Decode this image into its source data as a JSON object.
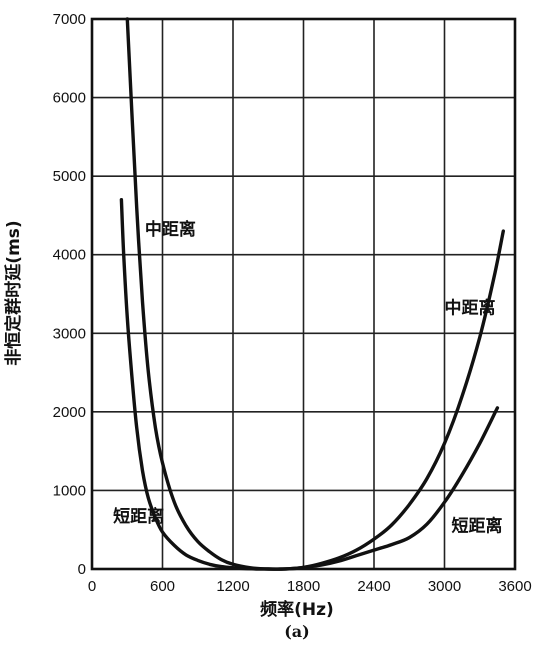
{
  "chart_data": {
    "type": "line",
    "title": "",
    "xlabel": "频率(Hz)",
    "ylabel": "非恒定群时延(ms)",
    "caption": "(a)",
    "xlim": [
      0,
      3600
    ],
    "ylim": [
      0,
      7000
    ],
    "x_ticks": [
      "0",
      "600",
      "1200",
      "1800",
      "2400",
      "3000",
      "3600"
    ],
    "y_ticks": [
      "0",
      "1000",
      "2000",
      "3000",
      "4000",
      "5000",
      "6000",
      "7000"
    ],
    "grid": true,
    "series": [
      {
        "name": "中距离",
        "x": [
          300,
          340,
          380,
          430,
          480,
          540,
          600,
          700,
          800,
          900,
          1000,
          1100,
          1200,
          1350,
          1500,
          1650,
          1800,
          1950,
          2100,
          2250,
          2400,
          2550,
          2700,
          2850,
          3000,
          3150,
          3300,
          3420,
          3500
        ],
        "y": [
          7000,
          5800,
          4600,
          3400,
          2500,
          1800,
          1350,
          850,
          550,
          350,
          220,
          120,
          60,
          15,
          0,
          0,
          20,
          70,
          140,
          240,
          380,
          560,
          820,
          1150,
          1600,
          2200,
          2950,
          3700,
          4300
        ]
      },
      {
        "name": "短距离",
        "x": [
          250,
          270,
          300,
          340,
          380,
          430,
          480,
          540,
          600,
          700,
          800,
          900,
          1000,
          1100,
          1200,
          1300,
          1400,
          1500,
          1600,
          1700,
          1800,
          1950,
          2100,
          2250,
          2400,
          2550,
          2700,
          2850,
          3000,
          3150,
          3300,
          3450
        ],
        "y": [
          4700,
          4000,
          3200,
          2450,
          1800,
          1250,
          900,
          650,
          470,
          300,
          180,
          110,
          60,
          30,
          15,
          5,
          0,
          0,
          0,
          5,
          20,
          50,
          100,
          170,
          240,
          310,
          400,
          570,
          850,
          1200,
          1600,
          2050
        ]
      }
    ],
    "annotations": [
      {
        "text": "中距离",
        "x": 450,
        "y": 4250
      },
      {
        "text": "中距离",
        "x": 3000,
        "y": 3250
      },
      {
        "text": "短距离",
        "x": 180,
        "y": 600
      },
      {
        "text": "短距离",
        "x": 3060,
        "y": 480
      }
    ]
  }
}
